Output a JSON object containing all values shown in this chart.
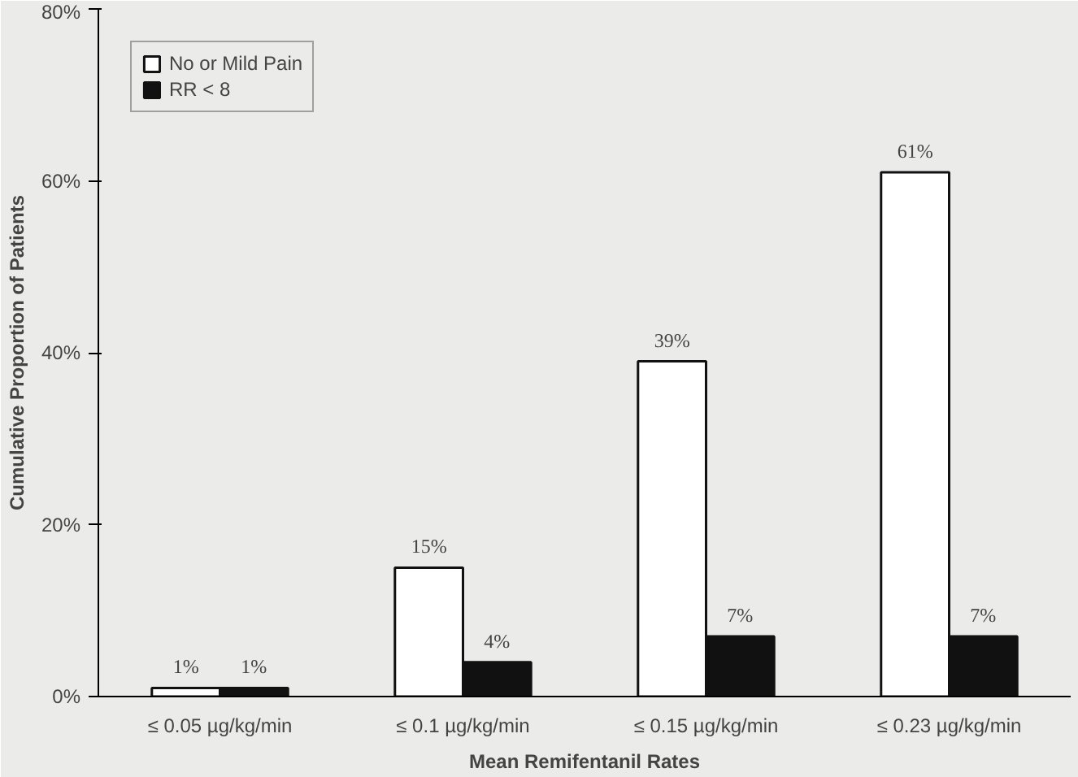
{
  "chart_data": {
    "type": "bar",
    "xlabel": "Mean Remifentanil Rates",
    "ylabel": "Cumulative Proportion of Patients",
    "categories": [
      "≤ 0.05 µg/kg/min",
      "≤ 0.1 µg/kg/min",
      "≤ 0.15 µg/kg/min",
      "≤ 0.23 µg/kg/min"
    ],
    "series": [
      {
        "name": "No or Mild Pain",
        "color": "#ffffff",
        "values": [
          1,
          15,
          39,
          61
        ],
        "value_labels": [
          "1%",
          "15%",
          "39%",
          "61%"
        ]
      },
      {
        "name": "RR < 8",
        "color": "#111111",
        "values": [
          1,
          4,
          7,
          7
        ],
        "value_labels": [
          "1%",
          "4%",
          "7%",
          "7%"
        ]
      }
    ],
    "ylim": [
      0,
      80
    ],
    "yticks": [
      {
        "value": 0,
        "label": "0%"
      },
      {
        "value": 20,
        "label": "20%"
      },
      {
        "value": 40,
        "label": "40%"
      },
      {
        "value": 60,
        "label": "60%"
      },
      {
        "value": 80,
        "label": "80%"
      }
    ],
    "legend": "top left"
  }
}
